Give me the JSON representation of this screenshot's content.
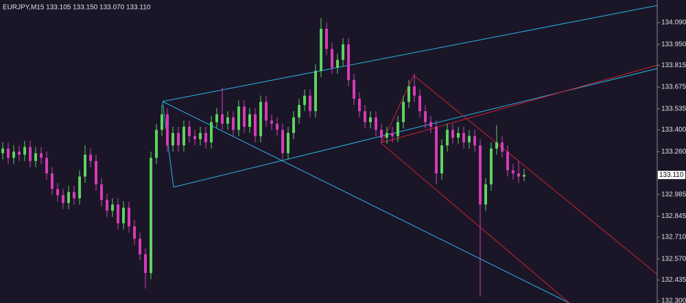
{
  "chart_data": {
    "type": "candlestick",
    "title": "EURJPY,M15 133.105 133.150 133.070 133.110",
    "up_color": "#5fd35f",
    "down_color": "#d63cb4",
    "ylim": [
      132.287,
      134.235
    ],
    "yticks": [
      {
        "value": 134.09,
        "label": "134.090"
      },
      {
        "value": 133.95,
        "label": "133.950"
      },
      133.815,
      133.675,
      133.535,
      {
        "value": 133.4,
        "label": "133.400"
      },
      {
        "value": 133.26,
        "label": "133.260"
      },
      132.985,
      132.845,
      {
        "value": 132.71,
        "label": "132.710"
      },
      {
        "value": 132.57,
        "label": "132.570"
      },
      132.435,
      {
        "value": 132.3,
        "label": "132.300"
      }
    ],
    "price_label": {
      "value": 133.11,
      "label": "133.110"
    },
    "ohlc": [
      [
        133.25,
        133.32,
        133.21,
        133.28
      ],
      [
        133.28,
        133.32,
        133.18,
        133.22
      ],
      [
        133.22,
        133.3,
        133.18,
        133.26
      ],
      [
        133.26,
        133.3,
        133.2,
        133.24
      ],
      [
        133.24,
        133.33,
        133.2,
        133.29
      ],
      [
        133.29,
        133.33,
        133.16,
        133.2
      ],
      [
        133.2,
        133.29,
        133.16,
        133.25
      ],
      [
        133.25,
        133.29,
        133.18,
        133.22
      ],
      [
        133.22,
        133.26,
        133.08,
        133.12
      ],
      [
        133.12,
        133.16,
        132.98,
        133.02
      ],
      [
        133.02,
        133.06,
        132.94,
        132.98
      ],
      [
        132.98,
        133.02,
        132.89,
        132.93
      ],
      [
        132.93,
        133.04,
        132.89,
        133.0
      ],
      [
        133.0,
        133.04,
        132.92,
        132.96
      ],
      [
        132.96,
        133.14,
        132.92,
        133.1
      ],
      [
        133.1,
        133.3,
        133.06,
        133.24
      ],
      [
        133.24,
        133.28,
        133.16,
        133.2
      ],
      [
        133.2,
        133.24,
        133.01,
        133.05
      ],
      [
        133.05,
        133.09,
        132.91,
        132.95
      ],
      [
        132.95,
        132.99,
        132.84,
        132.88
      ],
      [
        132.88,
        132.96,
        132.84,
        132.92
      ],
      [
        132.92,
        132.96,
        132.76,
        132.8
      ],
      [
        132.8,
        132.94,
        132.76,
        132.9
      ],
      [
        132.9,
        132.94,
        132.74,
        132.78
      ],
      [
        132.78,
        132.82,
        132.66,
        132.7
      ],
      [
        132.7,
        132.74,
        132.56,
        132.6
      ],
      [
        132.6,
        132.64,
        132.38,
        132.48
      ],
      [
        132.48,
        133.26,
        132.44,
        133.22
      ],
      [
        133.22,
        133.44,
        133.18,
        133.4
      ],
      [
        133.4,
        133.56,
        133.36,
        133.5
      ],
      [
        133.5,
        133.54,
        133.26,
        133.3
      ],
      [
        133.3,
        133.42,
        133.26,
        133.38
      ],
      [
        133.38,
        133.42,
        133.26,
        133.3
      ],
      [
        133.3,
        133.46,
        133.26,
        133.42
      ],
      [
        133.42,
        133.46,
        133.32,
        133.36
      ],
      [
        133.36,
        133.4,
        133.3,
        133.34
      ],
      [
        133.34,
        133.42,
        133.3,
        133.38
      ],
      [
        133.38,
        133.42,
        133.28,
        133.32
      ],
      [
        133.32,
        133.49,
        133.28,
        133.45
      ],
      [
        133.45,
        133.54,
        133.41,
        133.5
      ],
      [
        133.5,
        133.67,
        133.4,
        133.44
      ],
      [
        133.44,
        133.52,
        133.4,
        133.48
      ],
      [
        133.48,
        133.52,
        133.36,
        133.4
      ],
      [
        133.4,
        133.59,
        133.36,
        133.55
      ],
      [
        133.55,
        133.59,
        133.38,
        133.42
      ],
      [
        133.42,
        133.54,
        133.38,
        133.5
      ],
      [
        133.5,
        133.54,
        133.32,
        133.36
      ],
      [
        133.36,
        133.62,
        133.32,
        133.58
      ],
      [
        133.58,
        133.62,
        133.42,
        133.46
      ],
      [
        133.46,
        133.5,
        133.4,
        133.44
      ],
      [
        133.44,
        133.48,
        133.36,
        133.4
      ],
      [
        133.4,
        133.44,
        133.21,
        133.25
      ],
      [
        133.25,
        133.42,
        133.21,
        133.38
      ],
      [
        133.38,
        133.52,
        133.34,
        133.48
      ],
      [
        133.48,
        133.6,
        133.44,
        133.56
      ],
      [
        133.56,
        133.66,
        133.52,
        133.62
      ],
      [
        133.62,
        133.66,
        133.48,
        133.52
      ],
      [
        133.52,
        133.82,
        133.48,
        133.78
      ],
      [
        133.78,
        134.12,
        133.74,
        134.05
      ],
      [
        134.05,
        134.09,
        133.88,
        133.92
      ],
      [
        133.92,
        133.96,
        133.76,
        133.8
      ],
      [
        133.8,
        133.89,
        133.76,
        133.85
      ],
      [
        133.85,
        133.99,
        133.81,
        133.95
      ],
      [
        133.95,
        133.99,
        133.68,
        133.72
      ],
      [
        133.72,
        133.76,
        133.56,
        133.6
      ],
      [
        133.6,
        133.64,
        133.48,
        133.52
      ],
      [
        133.52,
        133.56,
        133.41,
        133.45
      ],
      [
        133.45,
        133.52,
        133.41,
        133.48
      ],
      [
        133.48,
        133.52,
        133.36,
        133.4
      ],
      [
        133.4,
        133.44,
        133.31,
        133.35
      ],
      [
        133.35,
        133.42,
        133.31,
        133.38
      ],
      [
        133.38,
        133.42,
        133.32,
        133.36
      ],
      [
        133.36,
        133.49,
        133.32,
        133.45
      ],
      [
        133.45,
        133.62,
        133.41,
        133.58
      ],
      [
        133.58,
        133.72,
        133.54,
        133.68
      ],
      [
        133.68,
        133.76,
        133.58,
        133.62
      ],
      [
        133.62,
        133.66,
        133.48,
        133.52
      ],
      [
        133.52,
        133.56,
        133.41,
        133.45
      ],
      [
        133.45,
        133.49,
        133.38,
        133.42
      ],
      [
        133.42,
        133.46,
        133.05,
        133.12
      ],
      [
        133.12,
        133.34,
        133.08,
        133.3
      ],
      [
        133.3,
        133.44,
        133.26,
        133.4
      ],
      [
        133.4,
        133.44,
        133.31,
        133.35
      ],
      [
        133.35,
        133.42,
        133.31,
        133.38
      ],
      [
        133.38,
        133.42,
        133.28,
        133.32
      ],
      [
        133.32,
        133.4,
        133.28,
        133.36
      ],
      [
        133.36,
        133.4,
        133.26,
        133.3
      ],
      [
        133.3,
        133.34,
        132.33,
        132.92
      ],
      [
        132.92,
        133.09,
        132.88,
        133.05
      ],
      [
        133.05,
        133.32,
        133.01,
        133.28
      ],
      [
        133.28,
        133.43,
        133.24,
        133.32
      ],
      [
        133.32,
        133.36,
        133.22,
        133.26
      ],
      [
        133.26,
        133.3,
        133.1,
        133.14
      ],
      [
        133.14,
        133.18,
        133.08,
        133.12
      ],
      [
        133.12,
        133.2,
        133.06,
        133.1
      ],
      [
        133.1,
        133.15,
        133.07,
        133.11
      ]
    ]
  }
}
